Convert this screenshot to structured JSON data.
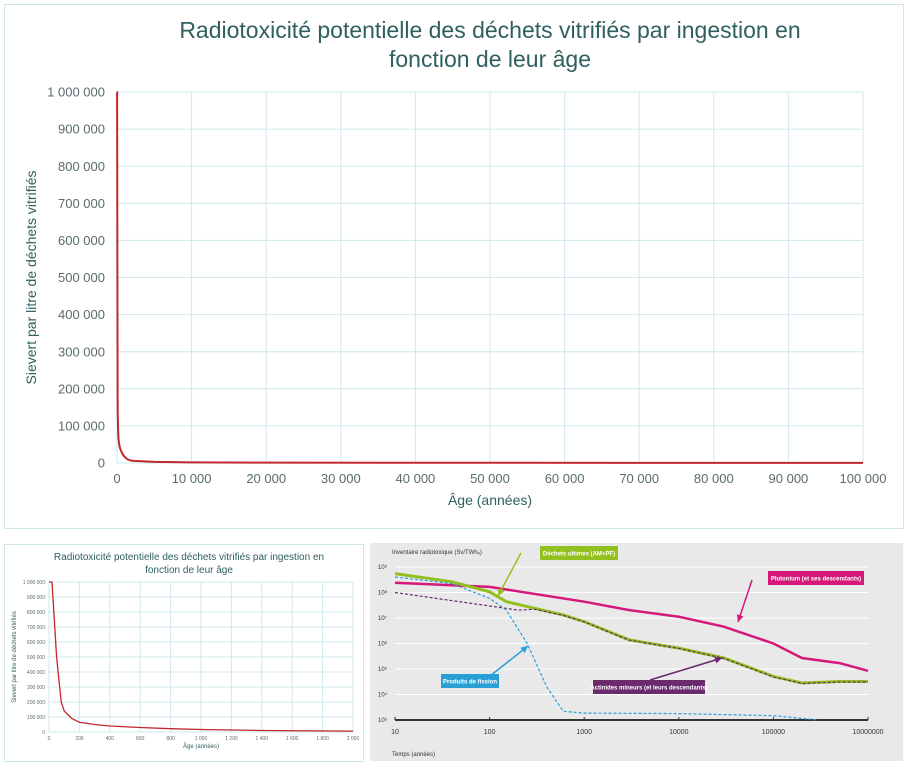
{
  "chart_data": [
    {
      "type": "line",
      "title": [
        "Radiotoxicité potentielle des déchets vitrifiés par ingestion en",
        "fonction de leur âge"
      ],
      "xlabel": "Âge (années)",
      "ylabel": "Sievert par litre de déchets vitrifiés",
      "xlim": [
        0,
        100000
      ],
      "ylim": [
        0,
        1000000
      ],
      "grid": true,
      "color": "#c0282e",
      "xticks": [
        "0",
        "10 000",
        "20 000",
        "30 000",
        "40 000",
        "50 000",
        "60 000",
        "70 000",
        "80 000",
        "90 000",
        "100 000"
      ],
      "yticks": [
        "0",
        "100 000",
        "200 000",
        "300 000",
        "400 000",
        "500 000",
        "600 000",
        "700 000",
        "800 000",
        "900 000",
        "1 000 000"
      ],
      "x": [
        20,
        50,
        80,
        100,
        150,
        200,
        300,
        400,
        600,
        800,
        1000,
        1400,
        2000,
        5000,
        10000,
        20000,
        50000,
        100000
      ],
      "y": [
        1000000,
        500000,
        200000,
        140000,
        90000,
        65000,
        50000,
        40000,
        30000,
        22000,
        17000,
        10000,
        6000,
        3000,
        1500,
        1000,
        500,
        300
      ]
    },
    {
      "type": "line",
      "title": [
        "Radiotoxicité potentielle des déchets vitrifiés par ingestion en",
        "fonction de leur âge"
      ],
      "xlabel": "Âge (années)",
      "ylabel": "Sievert par litre de déchets vitrifiés",
      "xlim": [
        0,
        2000
      ],
      "ylim": [
        0,
        1000000
      ],
      "grid": true,
      "color": "#c0282e",
      "xticks": [
        "0",
        "200",
        "400",
        "600",
        "800",
        "1 000",
        "1 200",
        "1 400",
        "1 600",
        "1 800",
        "2 000"
      ],
      "yticks": [
        "0",
        "100 000",
        "200 000",
        "300 000",
        "400 000",
        "500 000",
        "600 000",
        "700 000",
        "800 000",
        "900 000",
        "1 000 000"
      ],
      "x": [
        20,
        50,
        80,
        100,
        150,
        200,
        300,
        400,
        600,
        800,
        1000,
        1400,
        2000
      ],
      "y": [
        1000000,
        500000,
        200000,
        140000,
        90000,
        65000,
        50000,
        40000,
        30000,
        22000,
        17000,
        10000,
        6000
      ]
    },
    {
      "type": "line",
      "xscale": "log",
      "yscale": "log",
      "ylabel": "Inventaire radiotoxique (Sv/TWhₑ)",
      "xlabel": "Temps (années)",
      "xlim": [
        10,
        1000000
      ],
      "ylim": [
        1000,
        1000000000
      ],
      "grid": true,
      "xticks": [
        "10",
        "100",
        "1000",
        "10000",
        "100000",
        "10000000"
      ],
      "yticks": [
        "10³",
        "10⁴",
        "10⁵",
        "10⁶",
        "10⁷",
        "10⁸",
        "10⁹"
      ],
      "series": [
        {
          "name": "Plutonium (et ses descendants)",
          "color": "#d4197a",
          "dash": false,
          "x": [
            10,
            100,
            1000,
            3000,
            10000,
            30000,
            100000,
            200000,
            500000,
            1000000
          ],
          "y": [
            240000000,
            166000000,
            43600000,
            20400000,
            11200000,
            4570000,
            1000000,
            269000,
            170000,
            85000
          ]
        },
        {
          "name": "Déchets ultimes (AM+PF)",
          "color": "#93c01f",
          "dash": false,
          "x": [
            10,
            40,
            100,
            150,
            300,
            600,
            1000,
            3000,
            10000,
            30000,
            100000,
            200000,
            500000,
            1000000
          ],
          "y": [
            550000000,
            263000000,
            107000000,
            43600000,
            24000000,
            13200000,
            7240000,
            1380000,
            661000,
            269000,
            51300.0,
            28200,
            32400,
            32400
          ]
        },
        {
          "name": "Actinides mineurs (et leurs descendants)",
          "color": "#6b2a6b",
          "dash": true,
          "x": [
            10,
            100,
            200,
            300,
            600,
            1000,
            3000,
            10000,
            30000,
            100000,
            200000,
            500000,
            1000000
          ],
          "y": [
            100000000,
            29500000,
            20400000,
            22000000,
            12600000,
            7000000,
            1350000,
            640000,
            260000,
            49000,
            27000,
            31000,
            31000
          ]
        },
        {
          "name": "Produits de fission",
          "color": "#2a9fd6",
          "dash": true,
          "x": [
            10,
            40,
            100,
            150,
            250,
            400,
            600,
            1000,
            10000,
            100000,
            300000
          ],
          "y": [
            407000000,
            224000000,
            58900000,
            20400000,
            1000000,
            20400,
            2190,
            1860,
            1780,
            1480,
            1000
          ]
        }
      ]
    }
  ]
}
